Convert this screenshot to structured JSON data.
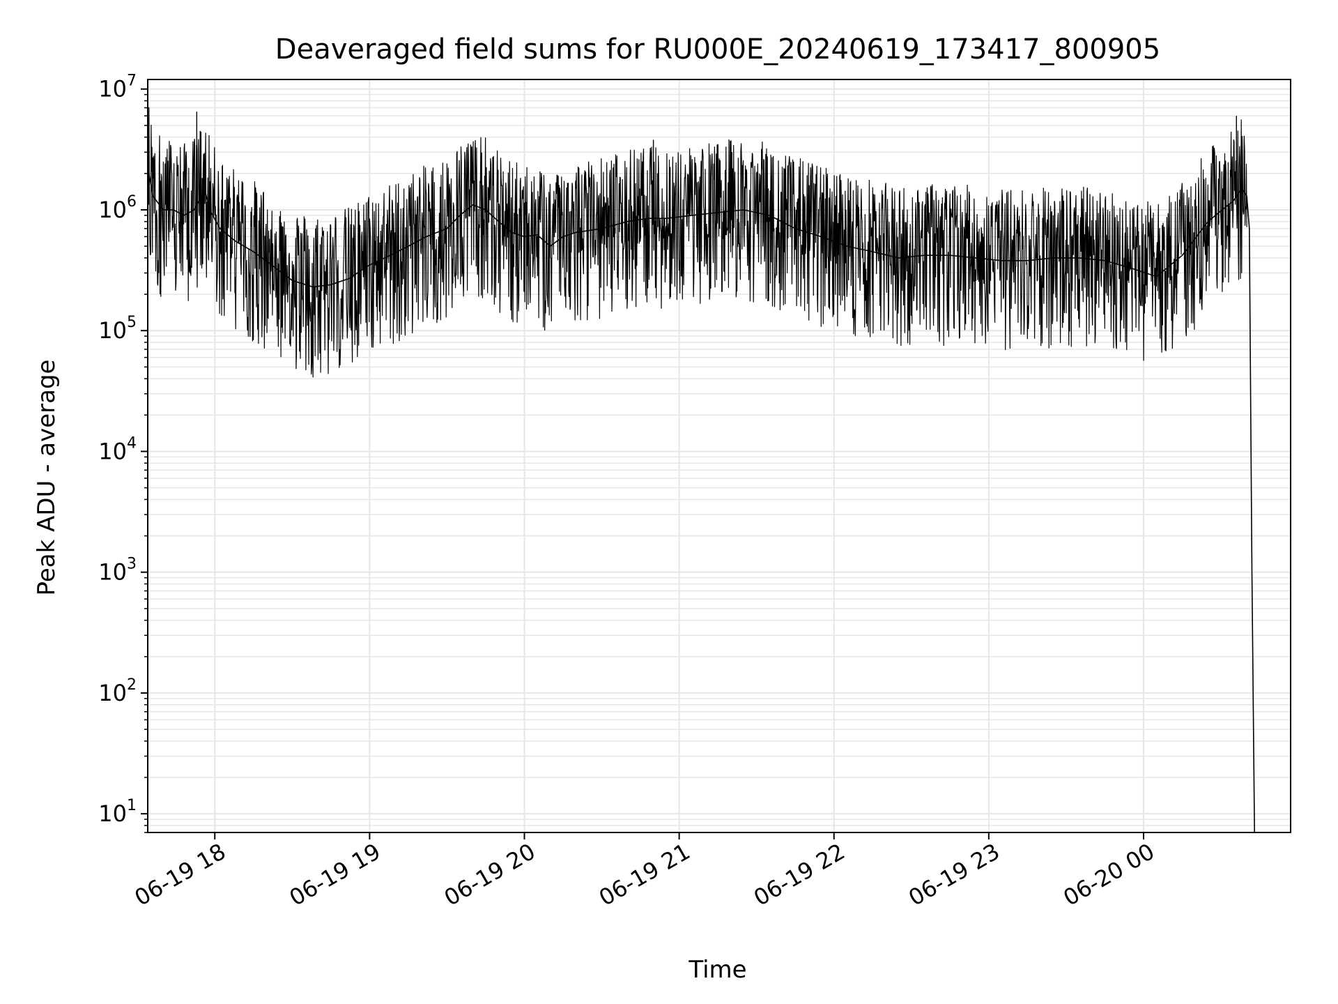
{
  "chart_data": {
    "type": "line",
    "title": "Deaveraged field sums for RU000E_20240619_173417_800905",
    "xlabel": "Time",
    "ylabel": "Peak ADU - average",
    "yscale": "log",
    "ylim": [
      7,
      12000000
    ],
    "xlim": [
      "2024-06-19 17:34",
      "2024-06-20 00:57"
    ],
    "grid": "both (major and minor)",
    "x_ticks": [
      {
        "value": "2024-06-19 18:00",
        "label": "06-19 18"
      },
      {
        "value": "2024-06-19 19:00",
        "label": "06-19 19"
      },
      {
        "value": "2024-06-19 20:00",
        "label": "06-19 20"
      },
      {
        "value": "2024-06-19 21:00",
        "label": "06-19 21"
      },
      {
        "value": "2024-06-19 22:00",
        "label": "06-19 22"
      },
      {
        "value": "2024-06-19 23:00",
        "label": "06-19 23"
      },
      {
        "value": "2024-06-20 00:00",
        "label": "06-20 00"
      }
    ],
    "y_ticks": [
      {
        "value": 10,
        "base": "10",
        "exp": "1"
      },
      {
        "value": 100,
        "base": "10",
        "exp": "2"
      },
      {
        "value": 1000,
        "base": "10",
        "exp": "3"
      },
      {
        "value": 10000,
        "base": "10",
        "exp": "4"
      },
      {
        "value": 100000,
        "base": "10",
        "exp": "5"
      },
      {
        "value": 1000000,
        "base": "10",
        "exp": "6"
      },
      {
        "value": 10000000,
        "base": "10",
        "exp": "7"
      }
    ],
    "series": [
      {
        "color": "#000000",
        "x": [
          "2024-06-19 17:34",
          "2024-06-19 17:36",
          "2024-06-19 17:40",
          "2024-06-19 17:44",
          "2024-06-19 17:48",
          "2024-06-19 17:52",
          "2024-06-19 17:54",
          "2024-06-19 17:56",
          "2024-06-19 17:58",
          "2024-06-19 18:02",
          "2024-06-19 18:08",
          "2024-06-19 18:15",
          "2024-06-19 18:22",
          "2024-06-19 18:30",
          "2024-06-19 18:38",
          "2024-06-19 18:45",
          "2024-06-19 18:52",
          "2024-06-19 19:00",
          "2024-06-19 19:08",
          "2024-06-19 19:15",
          "2024-06-19 19:22",
          "2024-06-19 19:30",
          "2024-06-19 19:35",
          "2024-06-19 19:40",
          "2024-06-19 19:45",
          "2024-06-19 19:50",
          "2024-06-19 19:55",
          "2024-06-19 20:00",
          "2024-06-19 20:05",
          "2024-06-19 20:10",
          "2024-06-19 20:15",
          "2024-06-19 20:20",
          "2024-06-19 20:30",
          "2024-06-19 20:40",
          "2024-06-19 20:48",
          "2024-06-19 20:55",
          "2024-06-19 21:05",
          "2024-06-19 21:15",
          "2024-06-19 21:25",
          "2024-06-19 21:35",
          "2024-06-19 21:45",
          "2024-06-19 21:55",
          "2024-06-19 22:05",
          "2024-06-19 22:15",
          "2024-06-19 22:25",
          "2024-06-19 22:35",
          "2024-06-19 22:45",
          "2024-06-19 22:55",
          "2024-06-19 23:05",
          "2024-06-19 23:15",
          "2024-06-19 23:25",
          "2024-06-19 23:35",
          "2024-06-19 23:45",
          "2024-06-19 23:55",
          "2024-06-20 00:05",
          "2024-06-20 00:15",
          "2024-06-20 00:25",
          "2024-06-20 00:35",
          "2024-06-20 00:38",
          "2024-06-20 00:40",
          "2024-06-20 00:41",
          "2024-06-20 00:42",
          "2024-06-20 00:43"
        ],
        "y": [
          2300000,
          1300000,
          1000000,
          1000000,
          900000,
          1000000,
          1200000,
          1500000,
          1000000,
          700000,
          550000,
          450000,
          350000,
          260000,
          230000,
          240000,
          270000,
          350000,
          420000,
          500000,
          600000,
          700000,
          900000,
          1100000,
          1000000,
          800000,
          650000,
          600000,
          620000,
          500000,
          600000,
          650000,
          700000,
          800000,
          850000,
          850000,
          900000,
          950000,
          1000000,
          900000,
          700000,
          600000,
          500000,
          450000,
          400000,
          420000,
          420000,
          400000,
          380000,
          380000,
          400000,
          400000,
          380000,
          330000,
          280000,
          420000,
          800000,
          1200000,
          1500000,
          1300000,
          700000,
          1000,
          7
        ]
      }
    ]
  }
}
